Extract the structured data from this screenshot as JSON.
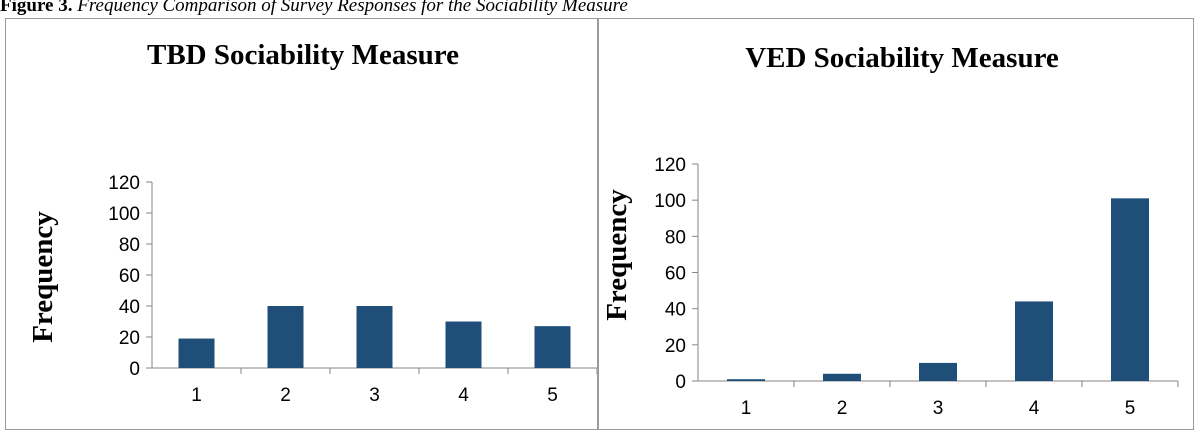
{
  "figure": {
    "caption_label": "Figure 3.",
    "caption_text": "Frequency Comparison of Survey Responses for the Sociability Measure"
  },
  "colors": {
    "bar": "#1f4e79",
    "axis": "#868686",
    "border": "#9a9a9a"
  },
  "chart_data": [
    {
      "type": "bar",
      "title": "TBD Sociability Measure",
      "xlabel": "",
      "ylabel": "Frequency",
      "categories": [
        "1",
        "2",
        "3",
        "4",
        "5"
      ],
      "values": [
        19,
        40,
        40,
        30,
        27
      ],
      "ylim": [
        0,
        120
      ],
      "yticks": [
        "0",
        "20",
        "40",
        "60",
        "80",
        "100",
        "120"
      ],
      "grid": false,
      "legend": "none"
    },
    {
      "type": "bar",
      "title": "VED Sociability Measure",
      "xlabel": "",
      "ylabel": "Frequency",
      "categories": [
        "1",
        "2",
        "3",
        "4",
        "5"
      ],
      "values": [
        1,
        4,
        10,
        44,
        101
      ],
      "ylim": [
        0,
        120
      ],
      "yticks": [
        "0",
        "20",
        "40",
        "60",
        "80",
        "100",
        "120"
      ],
      "grid": false,
      "legend": "none"
    }
  ]
}
